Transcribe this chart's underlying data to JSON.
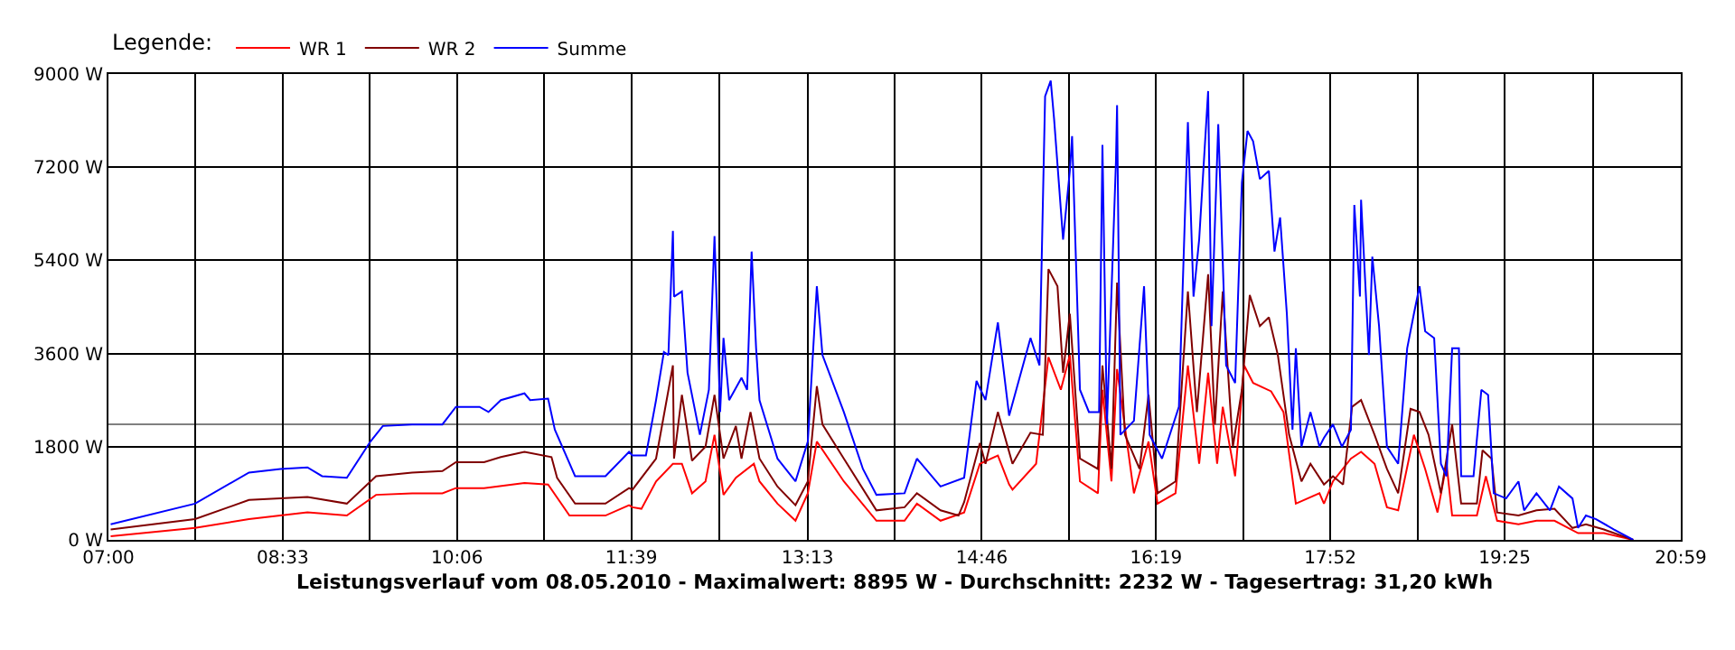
{
  "chart_data": {
    "type": "line",
    "legend_title": "Legende:",
    "legend": "top left",
    "xlabel": "Leistungsverlauf vom 08.05.2010 - Maximalwert: 8895 W - Durchschnitt: 2232 W - Tagesertrag: 31,20 kWh",
    "xlim": [
      7,
      20.9833
    ],
    "ylim": [
      0,
      9000
    ],
    "grid": true,
    "line_style": "solid",
    "marker": "none",
    "xticks": [
      {
        "value": 7,
        "label": "07:00"
      },
      {
        "value": 7.775,
        "label": null
      },
      {
        "value": 8.55,
        "label": "08:33"
      },
      {
        "value": 9.325,
        "label": null
      },
      {
        "value": 10.1,
        "label": "10:06"
      },
      {
        "value": 10.875,
        "label": null
      },
      {
        "value": 11.65,
        "label": "11:39"
      },
      {
        "value": 12.4333,
        "label": null
      },
      {
        "value": 13.2167,
        "label": "13:13"
      },
      {
        "value": 13.9917,
        "label": null
      },
      {
        "value": 14.7667,
        "label": "14:46"
      },
      {
        "value": 15.5417,
        "label": null
      },
      {
        "value": 16.3167,
        "label": "16:19"
      },
      {
        "value": 17.0917,
        "label": null
      },
      {
        "value": 17.8667,
        "label": "17:52"
      },
      {
        "value": 18.6417,
        "label": null
      },
      {
        "value": 19.4167,
        "label": "19:25"
      },
      {
        "value": 20.2,
        "label": null
      },
      {
        "value": 20.9833,
        "label": "20:59"
      }
    ],
    "yticks": [
      {
        "value": 0,
        "label": "0 W"
      },
      {
        "value": 1800,
        "label": "1800 W"
      },
      {
        "value": 3600,
        "label": "3600 W"
      },
      {
        "value": 5400,
        "label": "5400 W"
      },
      {
        "value": 7200,
        "label": "7200 W"
      },
      {
        "value": 9000,
        "label": "9000 W"
      }
    ],
    "ref_lines": [
      {
        "axis": "y",
        "value": 2232,
        "color": "#808080"
      }
    ],
    "series": [
      {
        "name": "WR 1",
        "color": "#ff0000",
        "x": [
          7.02,
          7.77,
          8.25,
          8.77,
          9.12,
          9.38,
          9.7,
          9.97,
          10.09,
          10.34,
          10.7,
          10.91,
          11.1,
          11.42,
          11.63,
          11.66,
          11.74,
          11.87,
          12.02,
          12.1,
          12.19,
          12.31,
          12.39,
          12.47,
          12.58,
          12.74,
          12.79,
          12.95,
          13.11,
          13.22,
          13.3,
          13.54,
          13.83,
          14.08,
          14.19,
          14.4,
          14.61,
          14.75,
          14.91,
          15.01,
          15.04,
          15.25,
          15.36,
          15.47,
          15.55,
          15.64,
          15.8,
          15.84,
          15.92,
          15.97,
          16.12,
          16.25,
          16.33,
          16.49,
          16.6,
          16.7,
          16.78,
          16.86,
          16.91,
          17.02,
          17.1,
          17.18,
          17.34,
          17.45,
          17.56,
          17.77,
          17.81,
          17.89,
          18.05,
          18.14,
          18.26,
          18.37,
          18.47,
          18.61,
          18.71,
          18.82,
          18.9,
          18.95,
          19.17,
          19.25,
          19.35,
          19.54,
          19.7,
          19.86,
          20.07,
          20.3,
          20.56
        ],
        "values": [
          70,
          230,
          400,
          530,
          470,
          870,
          900,
          900,
          1000,
          1000,
          1100,
          1070,
          470,
          470,
          670,
          630,
          600,
          1130,
          1470,
          1470,
          900,
          1130,
          2030,
          870,
          1200,
          1470,
          1130,
          700,
          370,
          900,
          1900,
          1130,
          370,
          370,
          700,
          370,
          530,
          1470,
          1630,
          1070,
          970,
          1470,
          3530,
          2900,
          3570,
          1130,
          900,
          2900,
          1130,
          3300,
          900,
          1900,
          700,
          900,
          3370,
          1470,
          3230,
          1470,
          2570,
          1230,
          3370,
          3030,
          2870,
          2470,
          700,
          900,
          700,
          1130,
          1570,
          1700,
          1470,
          630,
          570,
          2030,
          1370,
          530,
          1470,
          470,
          470,
          1230,
          370,
          300,
          370,
          370,
          130,
          130,
          0
        ]
      },
      {
        "name": "WR 2",
        "color": "#800000",
        "x": [
          7.02,
          7.77,
          8.25,
          8.77,
          9.12,
          9.38,
          9.7,
          9.97,
          10.09,
          10.34,
          10.49,
          10.7,
          10.94,
          10.99,
          11.15,
          11.42,
          11.63,
          11.66,
          11.87,
          12.02,
          12.03,
          12.1,
          12.19,
          12.31,
          12.39,
          12.47,
          12.58,
          12.63,
          12.71,
          12.79,
          12.95,
          13.11,
          13.22,
          13.3,
          13.35,
          13.54,
          13.83,
          14.08,
          14.19,
          14.4,
          14.56,
          14.61,
          14.75,
          14.8,
          14.91,
          15.04,
          15.2,
          15.31,
          15.36,
          15.44,
          15.49,
          15.55,
          15.64,
          15.8,
          15.84,
          15.92,
          15.97,
          16.04,
          16.17,
          16.25,
          16.33,
          16.49,
          16.6,
          16.68,
          16.78,
          16.84,
          16.91,
          17.0,
          17.08,
          17.15,
          17.24,
          17.32,
          17.4,
          17.5,
          17.61,
          17.69,
          17.81,
          17.89,
          17.98,
          18.06,
          18.14,
          18.26,
          18.37,
          18.47,
          18.58,
          18.66,
          18.74,
          18.85,
          18.95,
          19.03,
          19.17,
          19.22,
          19.3,
          19.35,
          19.54,
          19.7,
          19.86,
          20.02,
          20.14,
          20.3,
          20.56
        ],
        "values": [
          200,
          400,
          770,
          830,
          700,
          1230,
          1300,
          1330,
          1500,
          1500,
          1600,
          1700,
          1600,
          1200,
          700,
          700,
          1000,
          970,
          1570,
          3370,
          1570,
          2800,
          1530,
          1800,
          2800,
          1570,
          2200,
          1570,
          2470,
          1570,
          1030,
          670,
          1130,
          2970,
          2230,
          1570,
          570,
          630,
          900,
          570,
          470,
          730,
          1870,
          1470,
          2470,
          1470,
          2070,
          2030,
          5230,
          4900,
          3230,
          4370,
          1570,
          1370,
          3370,
          1370,
          4970,
          2030,
          1370,
          2800,
          900,
          1130,
          4800,
          2470,
          5130,
          2230,
          4800,
          1800,
          2900,
          4730,
          4130,
          4300,
          3570,
          2030,
          1130,
          1470,
          1070,
          1230,
          1070,
          2570,
          2700,
          2030,
          1370,
          900,
          2530,
          2470,
          2030,
          900,
          2230,
          700,
          700,
          1730,
          1570,
          530,
          470,
          570,
          600,
          230,
          300,
          200,
          0
        ]
      },
      {
        "name": "Summe",
        "color": "#0000ff",
        "x": [
          7.02,
          7.77,
          8.25,
          8.53,
          8.77,
          8.9,
          9.12,
          9.33,
          9.44,
          9.7,
          9.97,
          10.09,
          10.3,
          10.38,
          10.49,
          10.7,
          10.75,
          10.91,
          10.97,
          11.15,
          11.42,
          11.63,
          11.66,
          11.78,
          11.87,
          11.94,
          11.98,
          12.02,
          12.03,
          12.1,
          12.15,
          12.26,
          12.34,
          12.39,
          12.44,
          12.47,
          12.52,
          12.63,
          12.68,
          12.72,
          12.76,
          12.79,
          12.95,
          13.11,
          13.22,
          13.3,
          13.35,
          13.54,
          13.71,
          13.83,
          14.08,
          14.19,
          14.4,
          14.61,
          14.72,
          14.8,
          14.91,
          15.01,
          15.2,
          15.28,
          15.33,
          15.38,
          15.41,
          15.49,
          15.55,
          15.57,
          15.64,
          15.72,
          15.81,
          15.84,
          15.88,
          15.96,
          15.97,
          16.0,
          16.12,
          16.21,
          16.26,
          16.37,
          16.52,
          16.6,
          16.65,
          16.7,
          16.78,
          16.81,
          16.87,
          16.94,
          17.02,
          17.08,
          17.13,
          17.18,
          17.24,
          17.32,
          17.37,
          17.42,
          17.48,
          17.53,
          17.56,
          17.61,
          17.69,
          17.77,
          17.81,
          17.89,
          17.97,
          18.05,
          18.08,
          18.13,
          18.14,
          18.21,
          18.24,
          18.3,
          18.37,
          18.47,
          18.55,
          18.61,
          18.66,
          18.71,
          18.79,
          18.85,
          18.9,
          18.95,
          19.01,
          19.03,
          19.14,
          19.21,
          19.27,
          19.32,
          19.43,
          19.54,
          19.59,
          19.7,
          19.82,
          19.9,
          20.02,
          20.07,
          20.14,
          20.23,
          20.39,
          20.56
        ],
        "values": [
          300,
          700,
          1300,
          1370,
          1400,
          1230,
          1200,
          1900,
          2200,
          2230,
          2230,
          2570,
          2570,
          2470,
          2700,
          2830,
          2700,
          2730,
          2130,
          1230,
          1230,
          1700,
          1630,
          1630,
          2700,
          3630,
          3570,
          5970,
          4700,
          4800,
          3230,
          2030,
          2900,
          5870,
          2470,
          3900,
          2700,
          3130,
          2900,
          5570,
          3700,
          2700,
          1570,
          1130,
          1900,
          4900,
          3570,
          2470,
          1370,
          870,
          900,
          1570,
          1030,
          1200,
          3070,
          2700,
          4200,
          2400,
          3900,
          3370,
          8570,
          8870,
          8130,
          5800,
          7130,
          7800,
          2900,
          2470,
          2470,
          7630,
          2230,
          7300,
          8400,
          2030,
          2300,
          4900,
          2030,
          1570,
          2570,
          8070,
          4700,
          5800,
          8670,
          4130,
          8030,
          3370,
          3030,
          6900,
          7900,
          7700,
          6970,
          7130,
          5570,
          6230,
          4370,
          2130,
          3700,
          1800,
          2470,
          1800,
          1970,
          2230,
          1800,
          2130,
          6470,
          4700,
          6570,
          3570,
          5470,
          4130,
          1800,
          1470,
          3700,
          4370,
          4900,
          4030,
          3900,
          1470,
          1230,
          3700,
          3700,
          1230,
          1230,
          2900,
          2800,
          900,
          800,
          1130,
          570,
          900,
          570,
          1030,
          800,
          230,
          470,
          400,
          200,
          0
        ]
      }
    ]
  }
}
